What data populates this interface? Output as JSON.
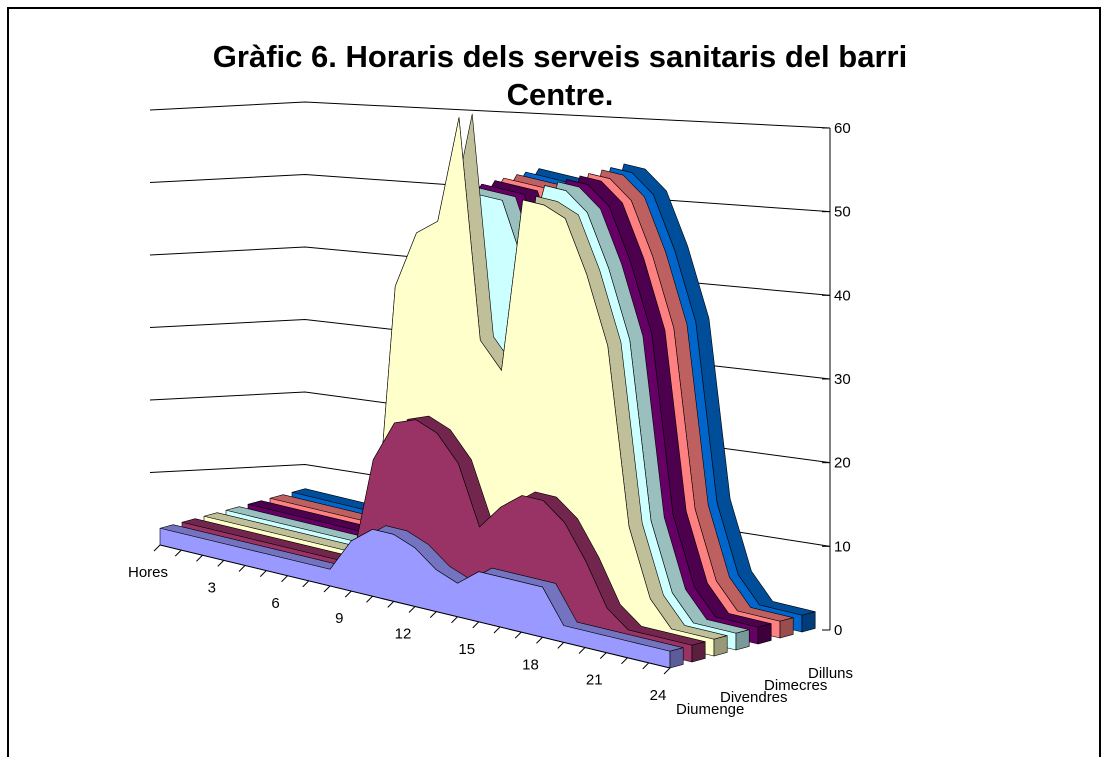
{
  "chart_data": {
    "type": "area3d",
    "title": "Gràfic 6. Horaris dels serveis sanitaris del barri Centre.",
    "categories": [
      "Hores",
      null,
      null,
      "3",
      null,
      null,
      "6",
      null,
      null,
      "9",
      null,
      null,
      "12",
      null,
      null,
      "15",
      null,
      null,
      "18",
      null,
      null,
      "21",
      null,
      null,
      "24"
    ],
    "series": [
      {
        "name": "Dilluns",
        "color": "#0066cc",
        "values": [
          2,
          2,
          2,
          2,
          2,
          2,
          2,
          2,
          2,
          35,
          42,
          47,
          47,
          47,
          40,
          50,
          50,
          48,
          42,
          34,
          13,
          5,
          2,
          2,
          2
        ]
      },
      {
        "name": null,
        "color": "#ff8080",
        "values": [
          2,
          2,
          2,
          2,
          2,
          2,
          2,
          2,
          2,
          35,
          42,
          47,
          47,
          47,
          40,
          50,
          50,
          48,
          42,
          34,
          13,
          5,
          2,
          2,
          2
        ]
      },
      {
        "name": "Dimecres",
        "color": "#660066",
        "values": [
          2,
          2,
          2,
          2,
          2,
          2,
          2,
          2,
          2,
          35,
          42,
          47,
          47,
          47,
          40,
          50,
          50,
          48,
          42,
          34,
          13,
          5,
          2,
          2,
          2
        ]
      },
      {
        "name": null,
        "color": "#ccffff",
        "values": [
          2,
          2,
          2,
          2,
          2,
          2,
          2,
          2,
          2,
          35,
          42,
          47,
          47,
          47,
          40,
          50,
          50,
          48,
          42,
          34,
          13,
          5,
          2,
          2,
          2
        ]
      },
      {
        "name": "Divendres",
        "color": "#ffffcc",
        "values": [
          2,
          2,
          2,
          2,
          2,
          2,
          2,
          2,
          2,
          35,
          42,
          44,
          57,
          31,
          28,
          49,
          49,
          48,
          42,
          34,
          13,
          5,
          2,
          2,
          2
        ]
      },
      {
        "name": null,
        "color": "#993366",
        "values": [
          2,
          2,
          2,
          2,
          2,
          2,
          2,
          2,
          2,
          15,
          20,
          21,
          20,
          17,
          10,
          13,
          15,
          15,
          13,
          9,
          4,
          2,
          2,
          2,
          2
        ]
      },
      {
        "name": "Diumenge",
        "color": "#9999ff",
        "values": [
          2,
          2,
          2,
          2,
          2,
          2,
          2,
          2,
          2,
          6,
          8,
          8,
          7,
          5,
          4,
          6,
          6,
          6,
          6,
          2,
          2,
          2,
          2,
          2,
          2
        ]
      }
    ],
    "ylim": [
      0,
      60
    ],
    "yticks": [
      0,
      10,
      20,
      30,
      40,
      50,
      60
    ],
    "grid": true
  }
}
